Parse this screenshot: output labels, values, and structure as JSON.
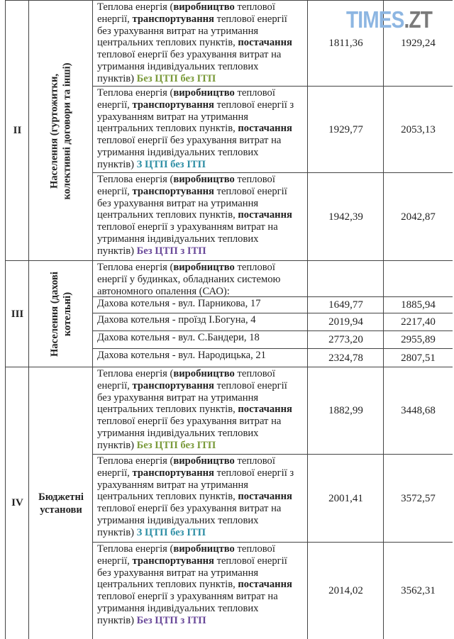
{
  "logo": {
    "text1": "TIMES",
    "text2": ".ZT",
    "color1": "#8db6e2",
    "color2": "#7a7a7a"
  },
  "colors": {
    "green": "#7a9a3a",
    "teal": "#2f8fa5",
    "purple": "#6a4a9a"
  },
  "groups": [
    {
      "roman": "II",
      "label": [
        "Населення (гуртожитки,",
        "колективні договори та інші)"
      ],
      "rotated": true,
      "rows": [
        {
          "lines": [
            [
              {
                "t": "Теплова енергія ("
              },
              {
                "t": "виробництво",
                "b": 1
              },
              {
                "t": " теплової"
              }
            ],
            [
              {
                "t": "енергії, "
              },
              {
                "t": "транспортування",
                "b": 1
              },
              {
                "t": " теплової енергії"
              }
            ],
            [
              {
                "t": "без урахування витрат на утримання"
              }
            ],
            [
              {
                "t": "центральних теплових пунктів, "
              },
              {
                "t": "постачання",
                "b": 1
              }
            ],
            [
              {
                "t": "теплової енергії  без урахування витрат на"
              }
            ],
            [
              {
                "t": "утримання індивідуальних теплових"
              }
            ],
            [
              {
                "t": "пунктів) "
              },
              {
                "t": "Без ЦТП без ІТП",
                "b": 1,
                "c": "green"
              }
            ]
          ],
          "v1": "1811,36",
          "v2": "1929,24"
        },
        {
          "lines": [
            [
              {
                "t": "Теплова енергія ("
              },
              {
                "t": "виробництво",
                "b": 1
              },
              {
                "t": " теплової"
              }
            ],
            [
              {
                "t": "енергії, "
              },
              {
                "t": "транспортування",
                "b": 1
              },
              {
                "t": " теплової енергії з"
              }
            ],
            [
              {
                "t": "урахуванням витрат на утримання"
              }
            ],
            [
              {
                "t": "центральних теплових пунктів, "
              },
              {
                "t": "постачання",
                "b": 1
              }
            ],
            [
              {
                "t": "теплової енергії  без урахування витрат на"
              }
            ],
            [
              {
                "t": "утримання індивідуальних теплових"
              }
            ],
            [
              {
                "t": "пунктів) "
              },
              {
                "t": "З ЦТП без ІТП",
                "b": 1,
                "c": "teal"
              }
            ]
          ],
          "v1": "1929,77",
          "v2": "2053,13"
        },
        {
          "lines": [
            [
              {
                "t": "Теплова енергія ("
              },
              {
                "t": "виробництво",
                "b": 1
              },
              {
                "t": " теплової"
              }
            ],
            [
              {
                "t": "енергії, "
              },
              {
                "t": "транспортування",
                "b": 1
              },
              {
                "t": " теплової енергії"
              }
            ],
            [
              {
                "t": "без урахування витрат на утримання"
              }
            ],
            [
              {
                "t": "центральних теплових пунктів, "
              },
              {
                "t": "постачання",
                "b": 1
              }
            ],
            [
              {
                "t": "теплової енергії  з урахуванням витрат на"
              }
            ],
            [
              {
                "t": "утримання індивідуальних теплових"
              }
            ],
            [
              {
                "t": "пунктів) "
              },
              {
                "t": "Без ЦТП з ІТП",
                "b": 1,
                "c": "purple"
              }
            ]
          ],
          "v1": "1942,39",
          "v2": "2042,87"
        }
      ]
    },
    {
      "roman": "III",
      "label": [
        "Населення (дахові",
        "котельні)"
      ],
      "rotated": true,
      "rows": [
        {
          "lines": [
            [
              {
                "t": "Теплова енергія ("
              },
              {
                "t": "виробництво",
                "b": 1
              },
              {
                "t": " теплової"
              }
            ],
            [
              {
                "t": "енергії у будинках, обладнаних системою"
              }
            ],
            [
              {
                "t": "автономного опалення (САО):"
              }
            ]
          ],
          "v1": "",
          "v2": ""
        },
        {
          "lines": [
            [
              {
                "t": "Дахова котельня - вул. Парникова, 17"
              }
            ]
          ],
          "v1": "1649,77",
          "v2": "1885,94"
        },
        {
          "lines": [
            [
              {
                "t": "Дахова котельня - проїзд І.Богуна, 4"
              }
            ]
          ],
          "v1": "2019,94",
          "v2": "2217,40"
        },
        {
          "lines": [
            [
              {
                "t": "Дахова котельня - вул. С.Бандери, 18"
              }
            ]
          ],
          "v1": "2773,20",
          "v2": "2955,89"
        },
        {
          "lines": [
            [
              {
                "t": "Дахова котельня - вул. Народицька, 21"
              }
            ]
          ],
          "v1": "2324,78",
          "v2": "2807,51"
        }
      ]
    },
    {
      "roman": "IV",
      "label": [
        "Бюджетні",
        "установи"
      ],
      "rotated": false,
      "rows": [
        {
          "lines": [
            [
              {
                "t": "Теплова енергія ("
              },
              {
                "t": "виробництво",
                "b": 1
              },
              {
                "t": " теплової"
              }
            ],
            [
              {
                "t": "енергії, "
              },
              {
                "t": "транспортування",
                "b": 1
              },
              {
                "t": " теплової енергії"
              }
            ],
            [
              {
                "t": "без урахування витрат на утримання"
              }
            ],
            [
              {
                "t": "центральних теплових пунктів, "
              },
              {
                "t": "постачання",
                "b": 1
              }
            ],
            [
              {
                "t": "теплової енергії  без урахування витрат на"
              }
            ],
            [
              {
                "t": "утримання індивідуальних теплових"
              }
            ],
            [
              {
                "t": "пунктів) "
              },
              {
                "t": "Без ЦТП без ІТП",
                "b": 1,
                "c": "green"
              }
            ]
          ],
          "v1": "1882,99",
          "v2": "3448,68"
        },
        {
          "lines": [
            [
              {
                "t": "Теплова енергія ("
              },
              {
                "t": "виробництво",
                "b": 1
              },
              {
                "t": " теплової"
              }
            ],
            [
              {
                "t": "енергії, "
              },
              {
                "t": "транспортування",
                "b": 1
              },
              {
                "t": " теплової енергії з"
              }
            ],
            [
              {
                "t": "урахуванням витрат на утримання"
              }
            ],
            [
              {
                "t": "центральних теплових пунктів, "
              },
              {
                "t": "постачання",
                "b": 1
              }
            ],
            [
              {
                "t": "теплової енергії  без урахування витрат на"
              }
            ],
            [
              {
                "t": "утримання індивідуальних теплових"
              }
            ],
            [
              {
                "t": "пунктів) "
              },
              {
                "t": "З ЦТП без ІТП",
                "b": 1,
                "c": "teal"
              }
            ]
          ],
          "v1": "2001,41",
          "v2": "3572,57"
        },
        {
          "lines": [
            [
              {
                "t": "Теплова енергія ("
              },
              {
                "t": "виробництво",
                "b": 1
              },
              {
                "t": " теплової"
              }
            ],
            [
              {
                "t": "енергії, "
              },
              {
                "t": "транспортування",
                "b": 1
              },
              {
                "t": " теплової енергії"
              }
            ],
            [
              {
                "t": "без урахування витрат на утримання"
              }
            ],
            [
              {
                "t": "центральних теплових пунктів, "
              },
              {
                "t": "постачання",
                "b": 1
              }
            ],
            [
              {
                "t": "теплової енергії  з урахуванням витрат на"
              }
            ],
            [
              {
                "t": "утримання індивідуальних теплових"
              }
            ],
            [
              {
                "t": "пунктів) "
              },
              {
                "t": "Без ЦТП з ІТП",
                "b": 1,
                "c": "purple"
              }
            ]
          ],
          "v1": "2014,02",
          "v2": "3562,31"
        }
      ]
    }
  ]
}
